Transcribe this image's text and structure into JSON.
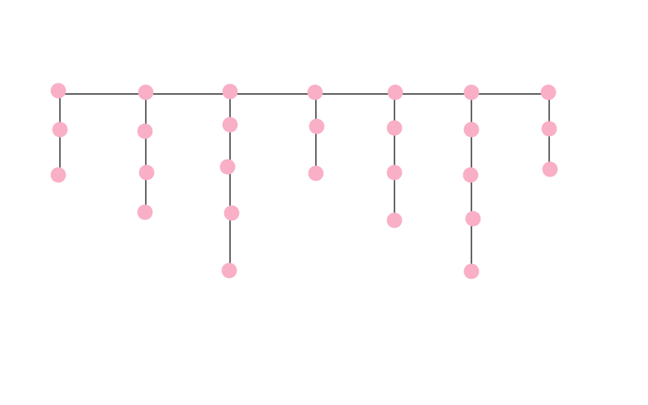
{
  "diagram": {
    "type": "tree",
    "node_color": "#F9AFC6",
    "edge_color": "#000000",
    "branch_sizes": [
      3,
      4,
      5,
      3,
      4,
      5,
      3
    ]
  }
}
